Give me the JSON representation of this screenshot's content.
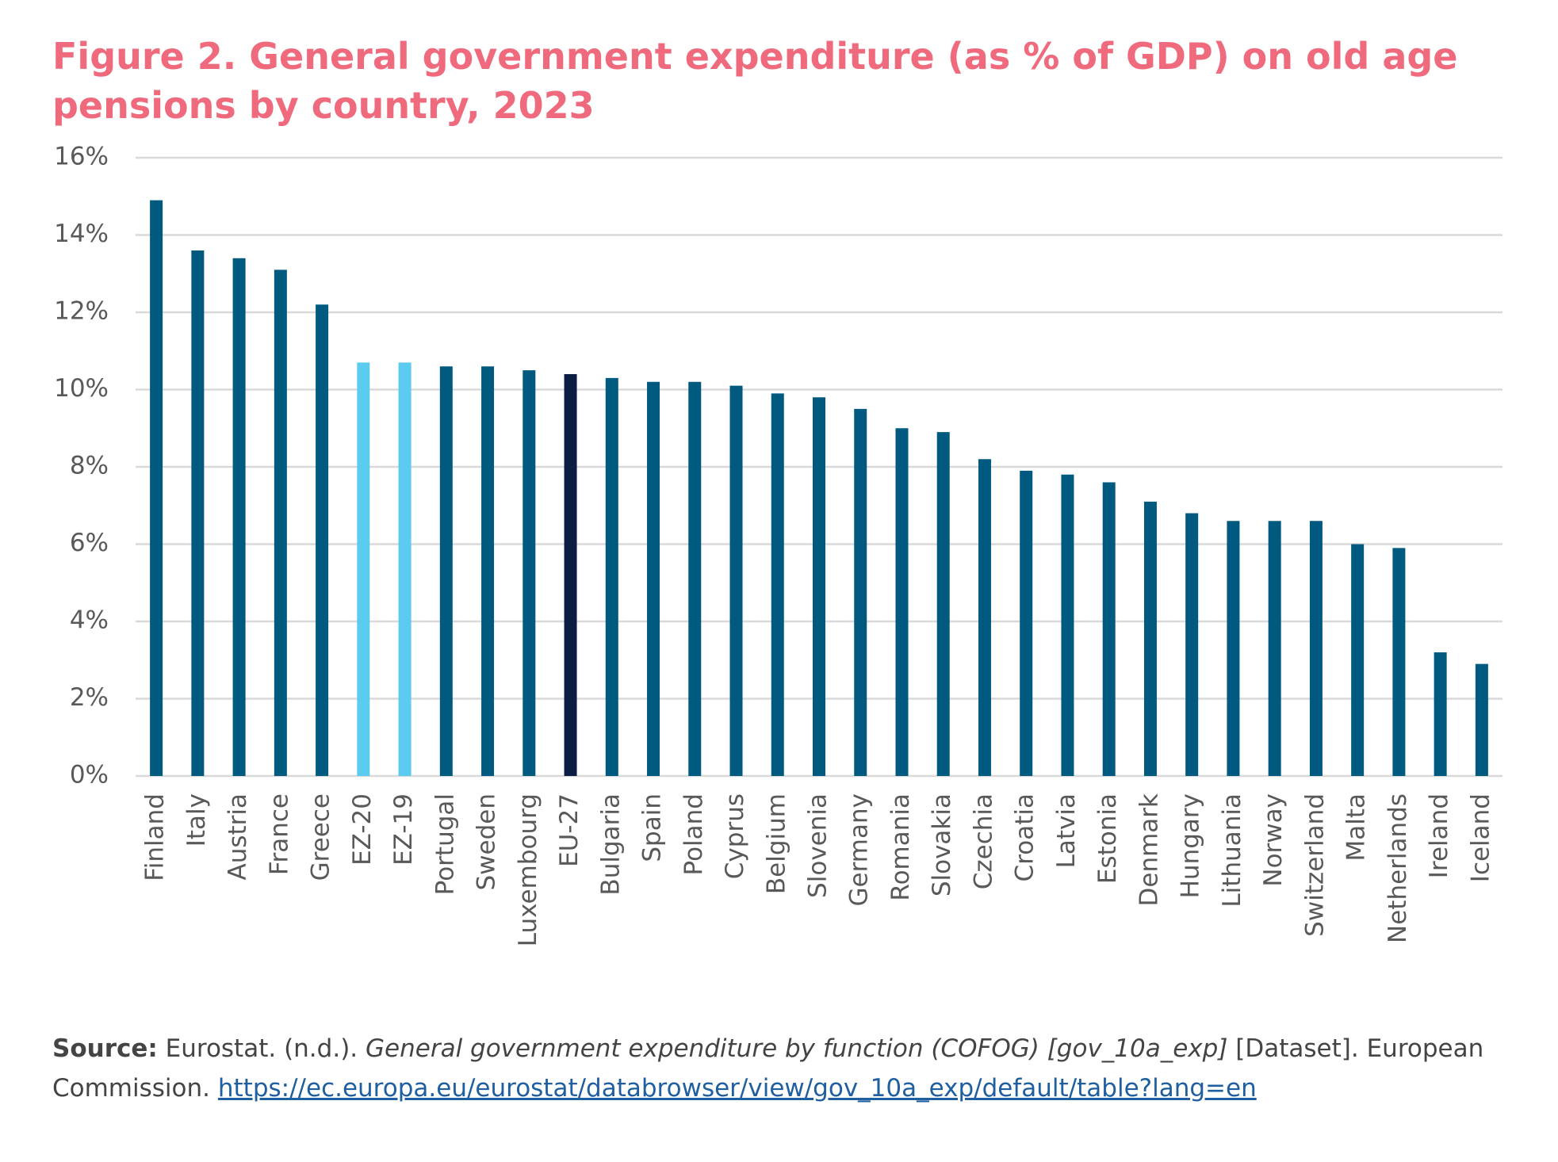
{
  "chart_data": {
    "type": "bar",
    "title": "Figure 2. General government expenditure (as % of GDP) on old age pensions by country, 2023",
    "categories": [
      "Finland",
      "Italy",
      "Austria",
      "France",
      "Greece",
      "EZ-20",
      "EZ-19",
      "Portugal",
      "Sweden",
      "Luxembourg",
      "EU-27",
      "Bulgaria",
      "Spain",
      "Poland",
      "Cyprus",
      "Belgium",
      "Slovenia",
      "Germany",
      "Romania",
      "Slovakia",
      "Czechia",
      "Croatia",
      "Latvia",
      "Estonia",
      "Denmark",
      "Hungary",
      "Lithuania",
      "Norway",
      "Switzerland",
      "Malta",
      "Netherlands",
      "Ireland",
      "Iceland"
    ],
    "values": [
      14.9,
      13.6,
      13.4,
      13.1,
      12.2,
      10.7,
      10.7,
      10.6,
      10.6,
      10.5,
      10.4,
      10.3,
      10.2,
      10.2,
      10.1,
      9.9,
      9.8,
      9.5,
      9.0,
      8.9,
      8.2,
      7.9,
      7.8,
      7.6,
      7.1,
      6.8,
      6.6,
      6.6,
      6.6,
      6.0,
      5.9,
      3.2,
      2.9
    ],
    "colors": [
      "#005a80",
      "#005a80",
      "#005a80",
      "#005a80",
      "#005a80",
      "#5bcbf0",
      "#5bcbf0",
      "#005a80",
      "#005a80",
      "#005a80",
      "#0a1e45",
      "#005a80",
      "#005a80",
      "#005a80",
      "#005a80",
      "#005a80",
      "#005a80",
      "#005a80",
      "#005a80",
      "#005a80",
      "#005a80",
      "#005a80",
      "#005a80",
      "#005a80",
      "#005a80",
      "#005a80",
      "#005a80",
      "#005a80",
      "#005a80",
      "#005a80",
      "#005a80",
      "#005a80",
      "#005a80"
    ],
    "ylim": [
      0,
      16
    ],
    "yticks": [
      {
        "value": 0,
        "label": "0%"
      },
      {
        "value": 2,
        "label": "2%"
      },
      {
        "value": 4,
        "label": "4%"
      },
      {
        "value": 6,
        "label": "6%"
      },
      {
        "value": 8,
        "label": "8%"
      },
      {
        "value": 10,
        "label": "10%"
      },
      {
        "value": 12,
        "label": "12%"
      },
      {
        "value": 14,
        "label": "14%"
      },
      {
        "value": 16,
        "label": "16%"
      }
    ],
    "grid": true,
    "source": {
      "label": "Source:",
      "author": "Eurostat. (n.d.).",
      "title": "General government expenditure by function (COFOG) [gov_10a_exp]",
      "rest": "[Dataset]. European Commission.",
      "url": "https://ec.europa.eu/eurostat/databrowser/view/gov_10a_exp/default/table?lang=en"
    }
  }
}
